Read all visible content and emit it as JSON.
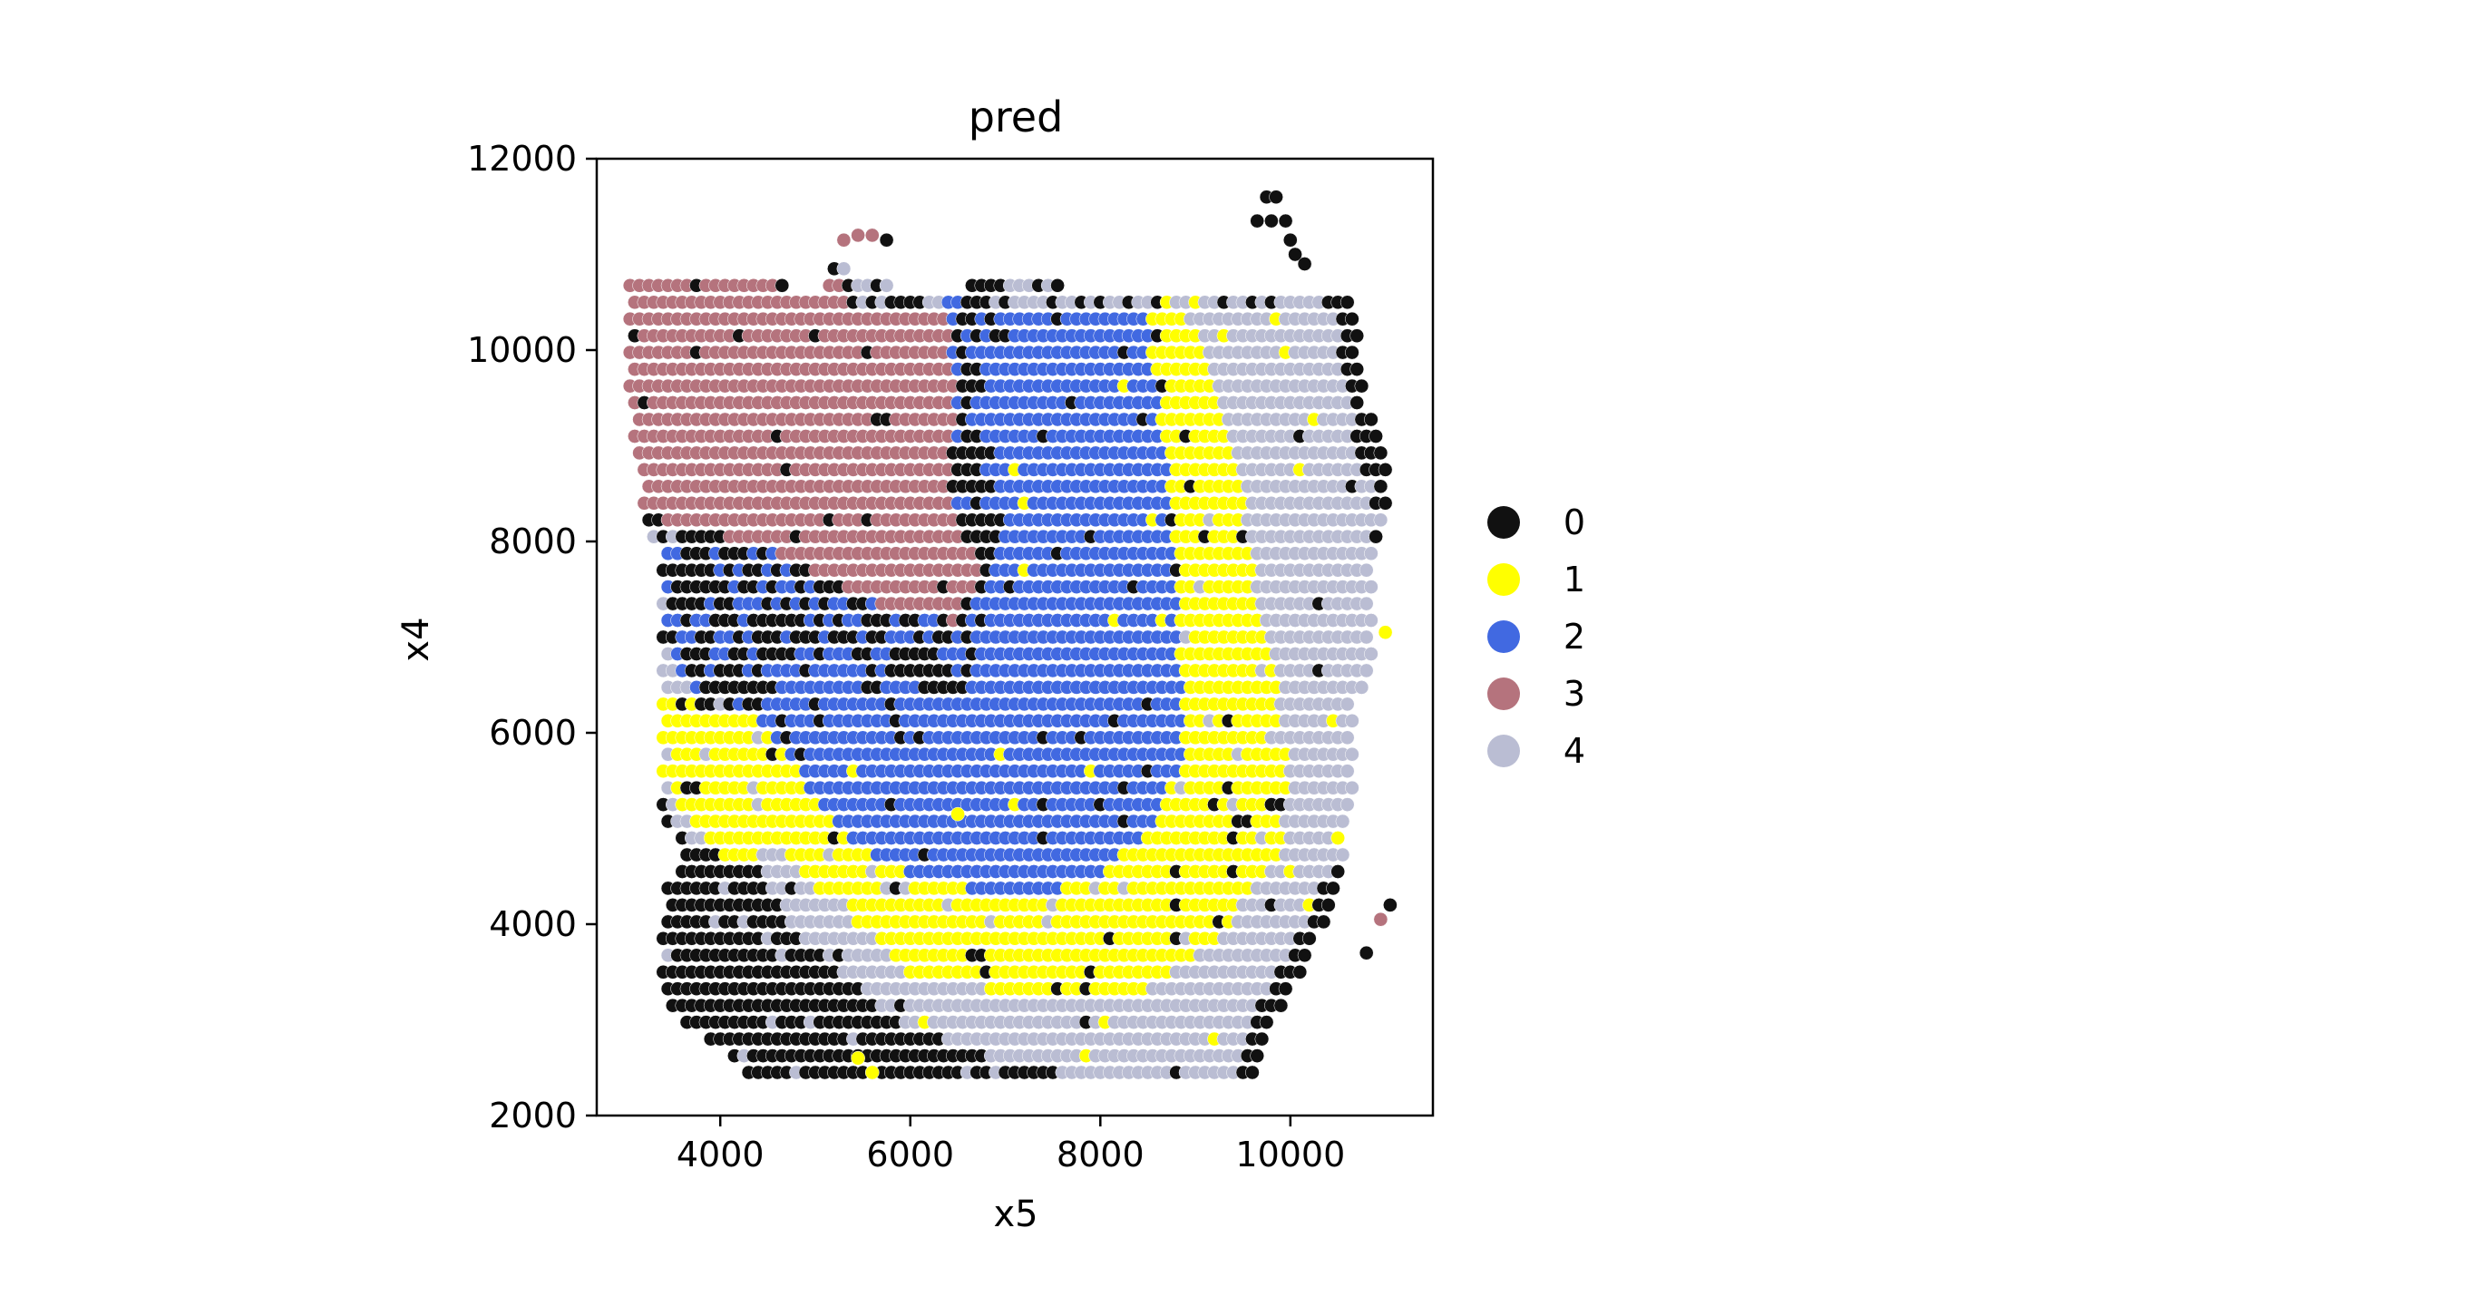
{
  "chart_data": {
    "type": "scatter",
    "title": "pred",
    "xlabel": "x5",
    "ylabel": "x4",
    "xlim": [
      2700,
      11500
    ],
    "ylim": [
      2000,
      12000
    ],
    "xticks": [
      4000,
      6000,
      8000,
      10000
    ],
    "xtick_labels": [
      "4000",
      "6000",
      "8000",
      "10000"
    ],
    "yticks": [
      2000,
      4000,
      6000,
      8000,
      10000,
      12000
    ],
    "ytick_labels": [
      "2000",
      "4000",
      "6000",
      "8000",
      "10000",
      "12000"
    ],
    "grid": false,
    "legend_placement": "right",
    "grid_spacing": {
      "dx": 100,
      "dy": 175
    },
    "series": [
      {
        "name": "0",
        "color": "#111111"
      },
      {
        "name": "1",
        "color": "#ffff00"
      },
      {
        "name": "2",
        "color": "#4169e1"
      },
      {
        "name": "3",
        "color": "#b5737d"
      },
      {
        "name": "4",
        "color": "#babdd3"
      }
    ],
    "outliers": [
      {
        "x": 11050,
        "y": 4200,
        "series": "0"
      },
      {
        "x": 10800,
        "y": 3700,
        "series": "0"
      },
      {
        "x": 10950,
        "y": 4050,
        "series": "3"
      },
      {
        "x": 9750,
        "y": 11600,
        "series": "0"
      },
      {
        "x": 9850,
        "y": 11600,
        "series": "0"
      },
      {
        "x": 9650,
        "y": 11350,
        "series": "0"
      },
      {
        "x": 9800,
        "y": 11350,
        "series": "0"
      },
      {
        "x": 9950,
        "y": 11350,
        "series": "0"
      },
      {
        "x": 10000,
        "y": 11150,
        "series": "0"
      },
      {
        "x": 10050,
        "y": 11000,
        "series": "0"
      },
      {
        "x": 10150,
        "y": 10900,
        "series": "0"
      },
      {
        "x": 11000,
        "y": 7050,
        "series": "1"
      },
      {
        "x": 6500,
        "y": 5150,
        "series": "1"
      },
      {
        "x": 5600,
        "y": 2450,
        "series": "1"
      },
      {
        "x": 5450,
        "y": 2600,
        "series": "1"
      },
      {
        "x": 5300,
        "y": 11150,
        "series": "3"
      },
      {
        "x": 5450,
        "y": 11200,
        "series": "3"
      },
      {
        "x": 5600,
        "y": 11200,
        "series": "3"
      },
      {
        "x": 5750,
        "y": 11150,
        "series": "0"
      }
    ]
  },
  "legend": {
    "entries": [
      {
        "label": "0",
        "color": "#111111"
      },
      {
        "label": "1",
        "color": "#ffff00"
      },
      {
        "label": "2",
        "color": "#4169e1"
      },
      {
        "label": "3",
        "color": "#b5737d"
      },
      {
        "label": "4",
        "color": "#babdd3"
      }
    ]
  }
}
